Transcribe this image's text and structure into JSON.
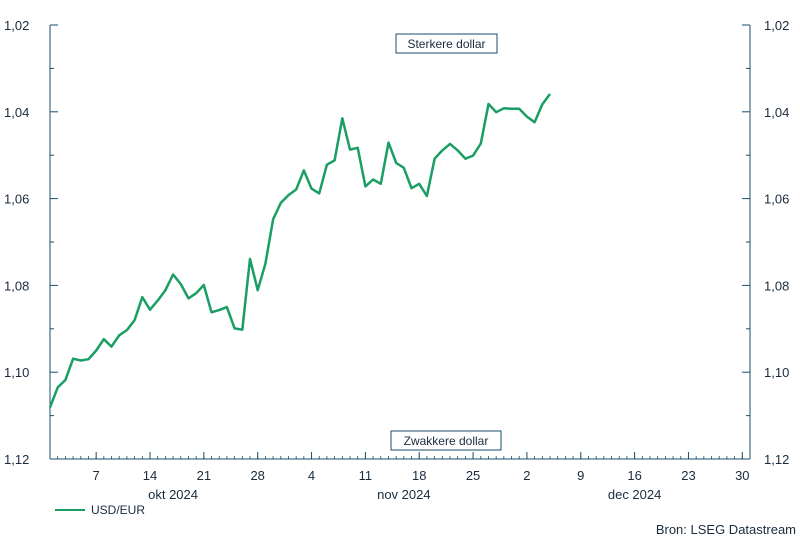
{
  "chart_data": {
    "type": "line",
    "title": "",
    "xlabel": "",
    "ylabel": "",
    "y_axis": {
      "min": 1.02,
      "max": 1.12,
      "inverted": true,
      "ticks": [
        "1,02",
        "1,04",
        "1,06",
        "1,08",
        "1,10",
        "1,12"
      ],
      "tick_values": [
        1.02,
        1.04,
        1.06,
        1.08,
        1.1,
        1.12
      ],
      "both_sides": true
    },
    "x_axis": {
      "start": "2024-10-01",
      "end": "2024-12-31",
      "ticks": [
        {
          "date": "2024-10-07",
          "label": "7"
        },
        {
          "date": "2024-10-14",
          "label": "14"
        },
        {
          "date": "2024-10-21",
          "label": "21"
        },
        {
          "date": "2024-10-28",
          "label": "28"
        },
        {
          "date": "2024-11-04",
          "label": "4"
        },
        {
          "date": "2024-11-11",
          "label": "11"
        },
        {
          "date": "2024-11-18",
          "label": "18"
        },
        {
          "date": "2024-11-25",
          "label": "25"
        },
        {
          "date": "2024-12-02",
          "label": "2"
        },
        {
          "date": "2024-12-09",
          "label": "9"
        },
        {
          "date": "2024-12-16",
          "label": "16"
        },
        {
          "date": "2024-12-23",
          "label": "23"
        },
        {
          "date": "2024-12-30",
          "label": "30"
        }
      ],
      "months": [
        {
          "label": "okt 2024",
          "center": "2024-10-17"
        },
        {
          "label": "nov 2024",
          "center": "2024-11-16"
        },
        {
          "label": "dec 2024",
          "center": "2024-12-16"
        }
      ]
    },
    "annotations": {
      "top": "Sterkere dollar",
      "bottom": "Zwakkere dollar"
    },
    "series": [
      {
        "name": "USD/EUR",
        "color": "#1a9e63",
        "points": [
          [
            "2024-10-01",
            1.1081
          ],
          [
            "2024-10-02",
            1.1035
          ],
          [
            "2024-10-03",
            1.1018
          ],
          [
            "2024-10-04",
            1.0969
          ],
          [
            "2024-10-05",
            1.0973
          ],
          [
            "2024-10-06",
            1.097
          ],
          [
            "2024-10-07",
            1.095
          ],
          [
            "2024-10-08",
            1.0924
          ],
          [
            "2024-10-09",
            1.0941
          ],
          [
            "2024-10-10",
            1.0915
          ],
          [
            "2024-10-11",
            1.0903
          ],
          [
            "2024-10-12",
            1.088
          ],
          [
            "2024-10-13",
            1.0827
          ],
          [
            "2024-10-14",
            1.0856
          ],
          [
            "2024-10-15",
            1.0835
          ],
          [
            "2024-10-16",
            1.0811
          ],
          [
            "2024-10-17",
            1.0775
          ],
          [
            "2024-10-18",
            1.0797
          ],
          [
            "2024-10-19",
            1.083
          ],
          [
            "2024-10-20",
            1.0818
          ],
          [
            "2024-10-21",
            1.0799
          ],
          [
            "2024-10-22",
            1.0862
          ],
          [
            "2024-10-23",
            1.0857
          ],
          [
            "2024-10-24",
            1.085
          ],
          [
            "2024-10-25",
            1.0899
          ],
          [
            "2024-10-26",
            1.0902
          ],
          [
            "2024-10-27",
            1.0739
          ],
          [
            "2024-10-28",
            1.0811
          ],
          [
            "2024-10-29",
            1.075
          ],
          [
            "2024-10-30",
            1.0648
          ],
          [
            "2024-10-31",
            1.061
          ],
          [
            "2024-11-01",
            1.0592
          ],
          [
            "2024-11-02",
            1.0579
          ],
          [
            "2024-11-03",
            1.0535
          ],
          [
            "2024-11-04",
            1.0577
          ],
          [
            "2024-11-05",
            1.0588
          ],
          [
            "2024-11-06",
            1.0522
          ],
          [
            "2024-11-07",
            1.0512
          ],
          [
            "2024-11-08",
            1.0415
          ],
          [
            "2024-11-09",
            1.0487
          ],
          [
            "2024-11-10",
            1.0483
          ],
          [
            "2024-11-11",
            1.0572
          ],
          [
            "2024-11-12",
            1.0556
          ],
          [
            "2024-11-13",
            1.0566
          ],
          [
            "2024-11-14",
            1.0471
          ],
          [
            "2024-11-15",
            1.0518
          ],
          [
            "2024-11-16",
            1.0529
          ],
          [
            "2024-11-17",
            1.0576
          ],
          [
            "2024-11-18",
            1.0566
          ],
          [
            "2024-11-19",
            1.0594
          ],
          [
            "2024-11-20",
            1.0508
          ],
          [
            "2024-11-21",
            1.0489
          ],
          [
            "2024-11-22",
            1.0474
          ],
          [
            "2024-11-23",
            1.0489
          ],
          [
            "2024-11-24",
            1.0508
          ],
          [
            "2024-11-25",
            1.0501
          ],
          [
            "2024-11-26",
            1.0473
          ],
          [
            "2024-11-27",
            1.0382
          ],
          [
            "2024-11-28",
            1.0401
          ],
          [
            "2024-11-29",
            1.0392
          ],
          [
            "2024-11-30",
            1.0393
          ],
          [
            "2024-12-01",
            1.0393
          ],
          [
            "2024-12-02",
            1.0411
          ],
          [
            "2024-12-03",
            1.0424
          ],
          [
            "2024-12-04",
            1.0383
          ],
          [
            "2024-12-05",
            1.0359
          ]
        ]
      }
    ]
  },
  "legend": {
    "label": "USD/EUR",
    "color": "#1a9e63"
  },
  "source": "Bron: LSEG Datastream"
}
